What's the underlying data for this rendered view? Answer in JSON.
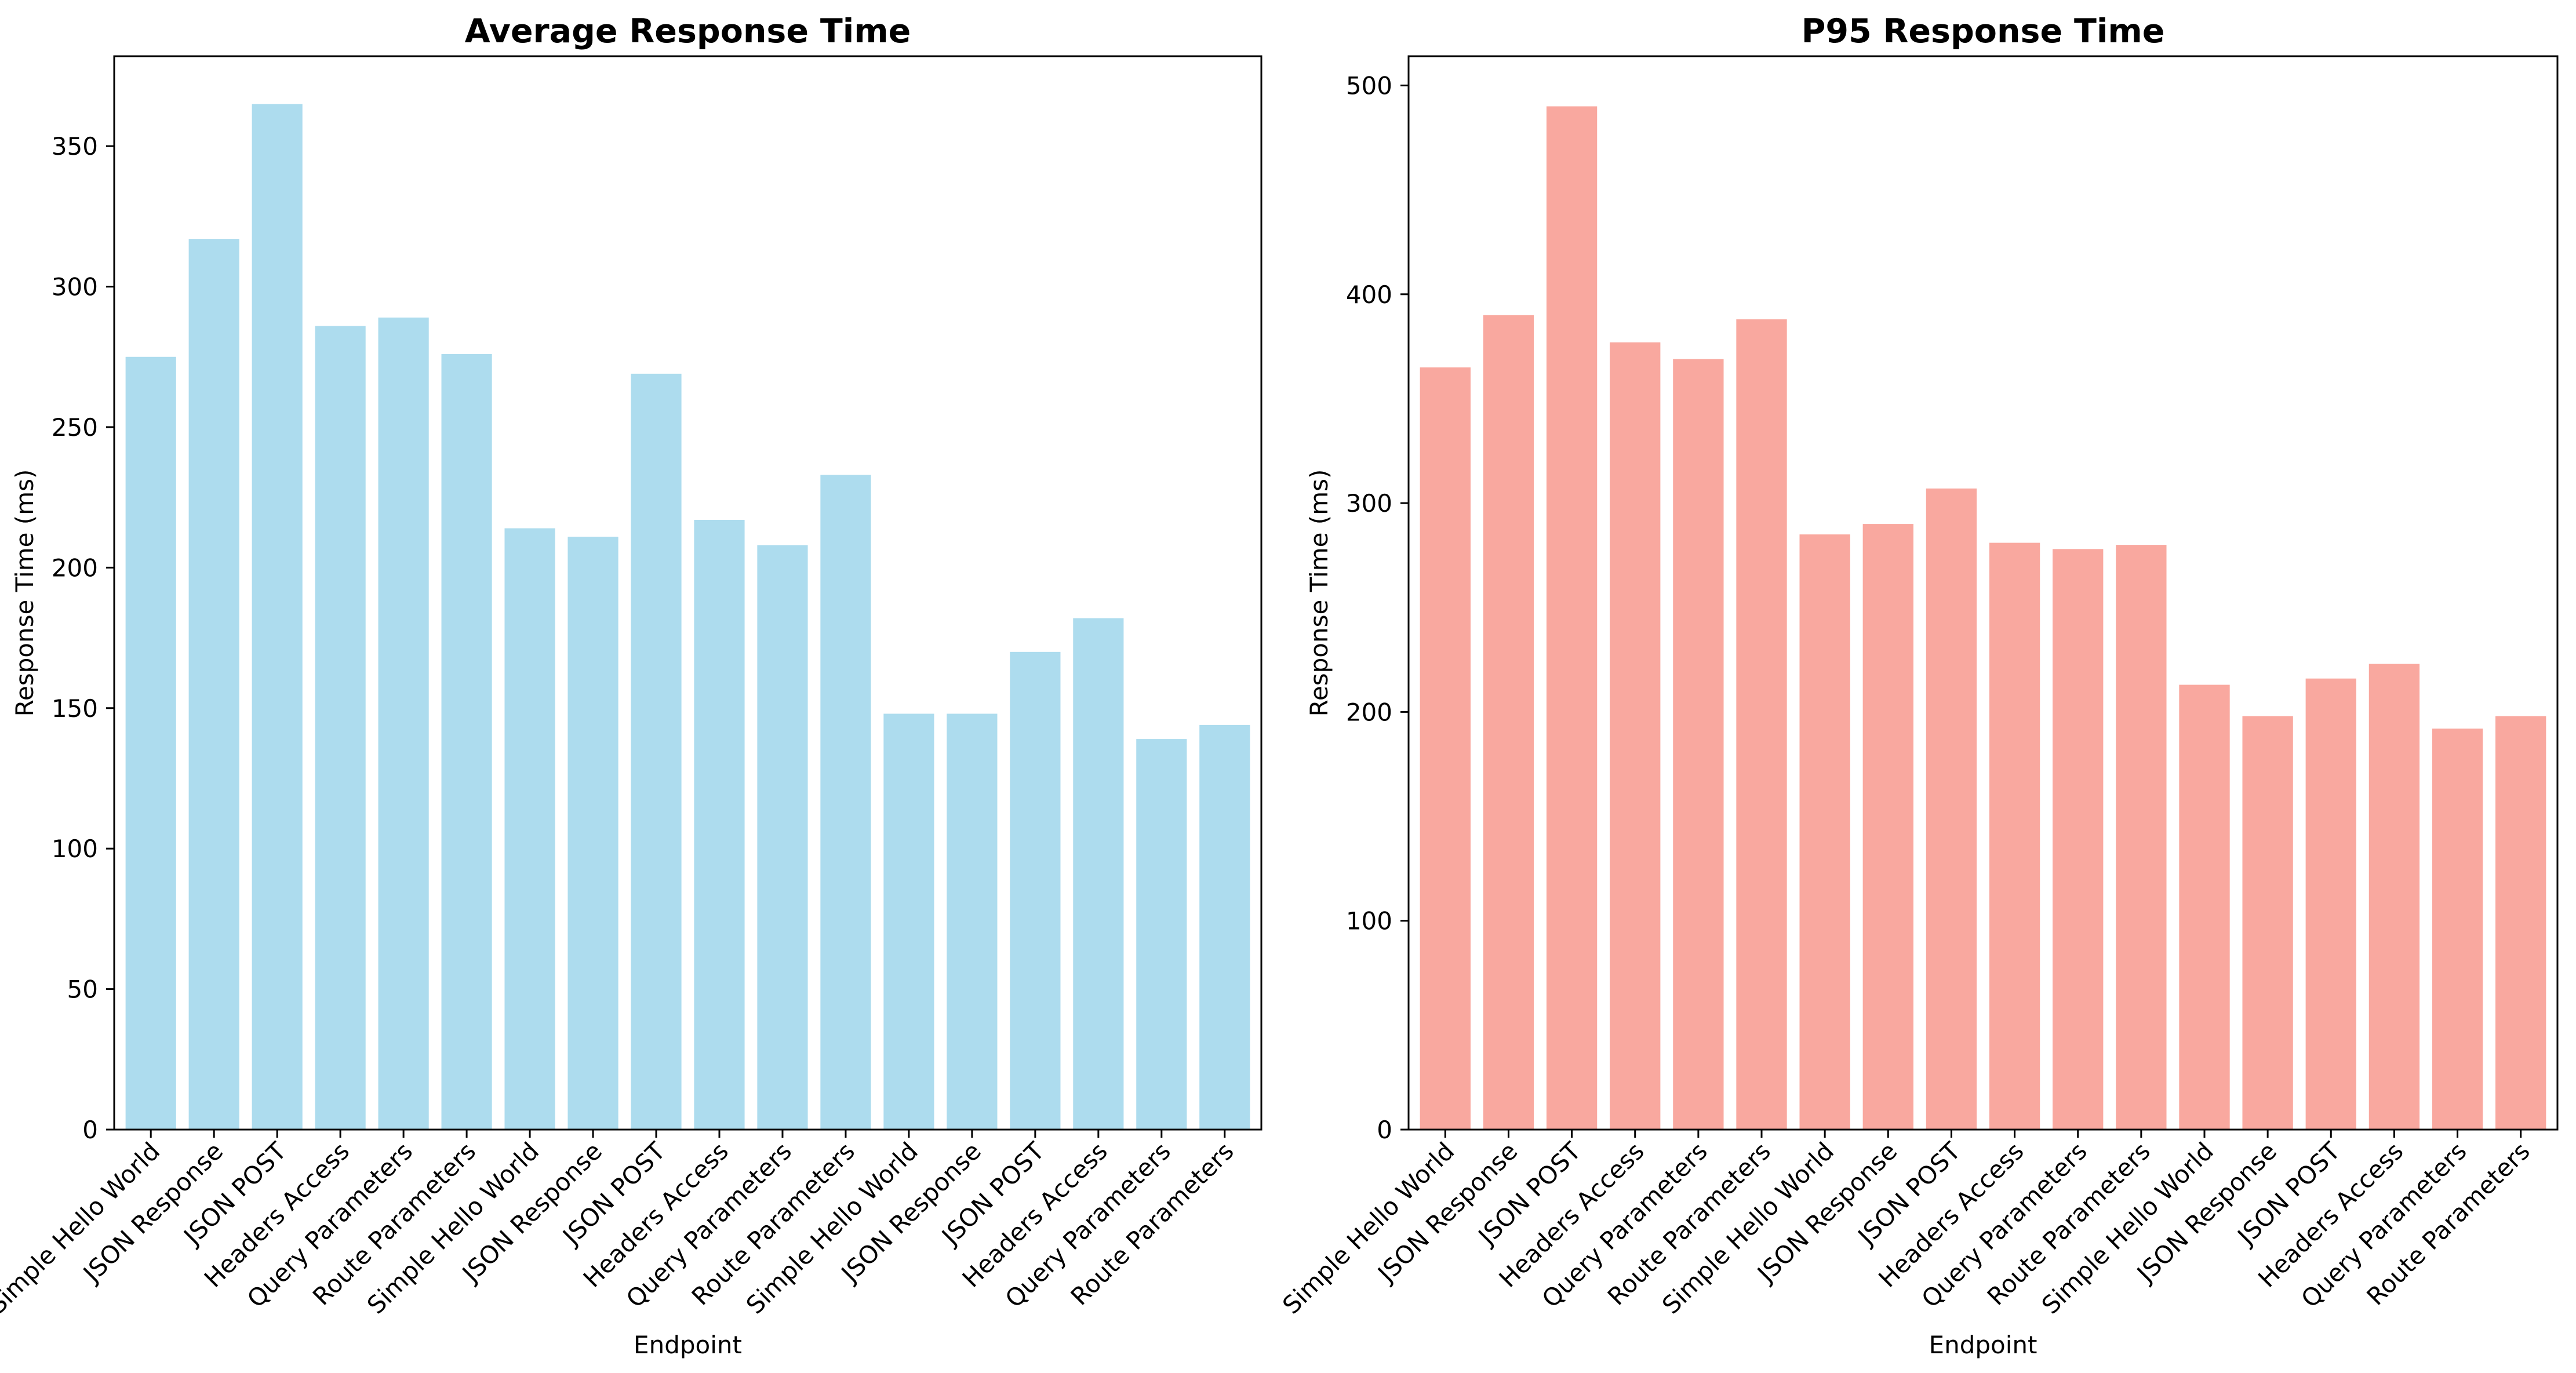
{
  "chart_data": [
    {
      "type": "bar",
      "title": "Average Response Time",
      "xlabel": "Endpoint",
      "ylabel": "Response Time (ms)",
      "color": "#ADDCEE",
      "ylim": [
        0,
        382
      ],
      "yticks": [
        0,
        50,
        100,
        150,
        200,
        250,
        300,
        350
      ],
      "categories": [
        "Simple Hello World",
        "JSON Response",
        "JSON POST",
        "Headers Access",
        "Query Parameters",
        "Route Parameters",
        "Simple Hello World",
        "JSON Response",
        "JSON POST",
        "Headers Access",
        "Query Parameters",
        "Route Parameters",
        "Simple Hello World",
        "JSON Response",
        "JSON POST",
        "Headers Access",
        "Query Parameters",
        "Route Parameters"
      ],
      "values": [
        275,
        317,
        365,
        286,
        289,
        276,
        214,
        211,
        269,
        217,
        208,
        233,
        148,
        148,
        170,
        182,
        139,
        144
      ],
      "grid": false
    },
    {
      "type": "bar",
      "title": "P95 Response Time",
      "xlabel": "Endpoint",
      "ylabel": "Response Time (ms)",
      "color": "#F9A89F",
      "ylim": [
        0,
        514
      ],
      "yticks": [
        0,
        100,
        200,
        300,
        400,
        500
      ],
      "categories": [
        "Simple Hello World",
        "JSON Response",
        "JSON POST",
        "Headers Access",
        "Query Parameters",
        "Route Parameters",
        "Simple Hello World",
        "JSON Response",
        "JSON POST",
        "Headers Access",
        "Query Parameters",
        "Route Parameters",
        "Simple Hello World",
        "JSON Response",
        "JSON POST",
        "Headers Access",
        "Query Parameters",
        "Route Parameters"
      ],
      "values": [
        365,
        390,
        490,
        377,
        369,
        388,
        285,
        290,
        307,
        281,
        278,
        280,
        213,
        198,
        216,
        223,
        192,
        198
      ],
      "grid": false
    }
  ]
}
